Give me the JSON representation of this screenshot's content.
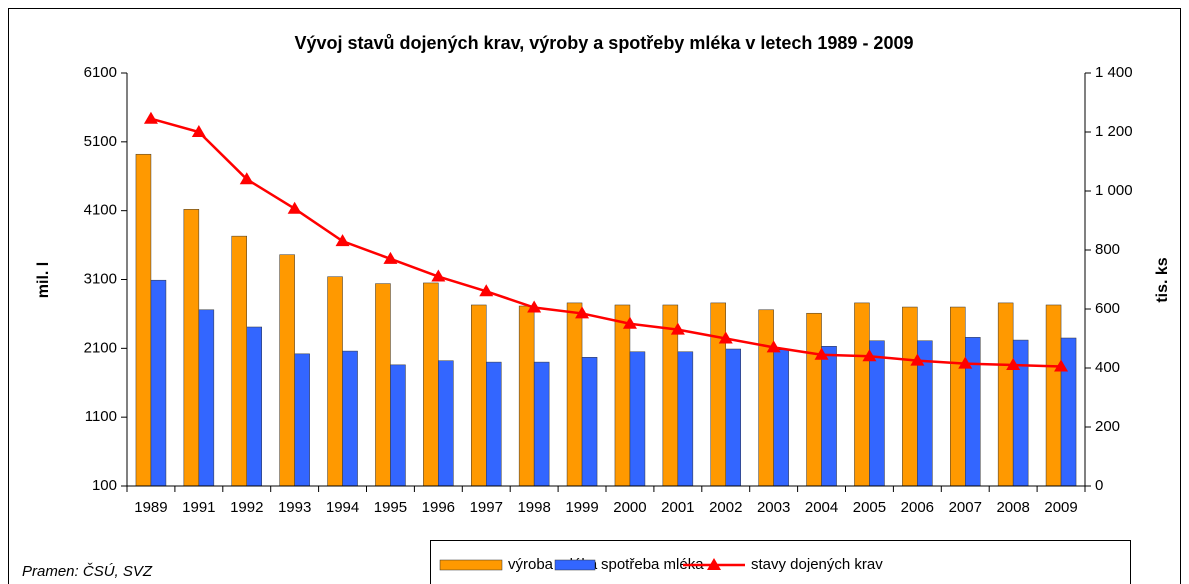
{
  "chart_data": {
    "type": "bar-line",
    "title": "Vývoj stavů dojených krav, výroby a spotřeby mléka v letech 1989 - 2009",
    "categories": [
      "1989",
      "1991",
      "1992",
      "1993",
      "1994",
      "1995",
      "1996",
      "1997",
      "1998",
      "1999",
      "2000",
      "2001",
      "2002",
      "2003",
      "2004",
      "2005",
      "2006",
      "2007",
      "2008",
      "2009"
    ],
    "series": [
      {
        "name": "výroba mléka",
        "color": "#ff9900",
        "type": "bar",
        "values": [
          4920,
          4120,
          3730,
          3460,
          3140,
          3040,
          3050,
          2730,
          2715,
          2760,
          2730,
          2730,
          2760,
          2660,
          2610,
          2760,
          2700,
          2700,
          2760,
          2730
        ]
      },
      {
        "name": "spotřeba mléka",
        "color": "#3366ff",
        "type": "bar",
        "values": [
          3090,
          2660,
          2410,
          2020,
          2060,
          1860,
          1920,
          1900,
          1900,
          1970,
          2050,
          2050,
          2090,
          2080,
          2130,
          2210,
          2210,
          2260,
          2220,
          2250
        ]
      },
      {
        "name": "stavy dojených krav",
        "color": "#ff0000",
        "type": "line",
        "axis": "y2",
        "values": [
          1245,
          1200,
          1040,
          940,
          830,
          770,
          710,
          660,
          605,
          585,
          550,
          530,
          500,
          470,
          445,
          440,
          425,
          415,
          410,
          405
        ]
      }
    ],
    "ylabel": "mil. l",
    "y2label": "tis. ks",
    "ylim": [
      100,
      6100
    ],
    "yticks": [
      100,
      1100,
      2100,
      3100,
      4100,
      5100,
      6100
    ],
    "y2lim": [
      0,
      1400
    ],
    "y2ticks": [
      0,
      200,
      400,
      600,
      800,
      {
        "value": 1000,
        "label": "1 000"
      },
      {
        "value": 1200,
        "label": "1 200"
      },
      {
        "value": 1400,
        "label": "1 400"
      }
    ],
    "source": "Pramen: ČSÚ, SVZ",
    "legend": "bottom"
  }
}
